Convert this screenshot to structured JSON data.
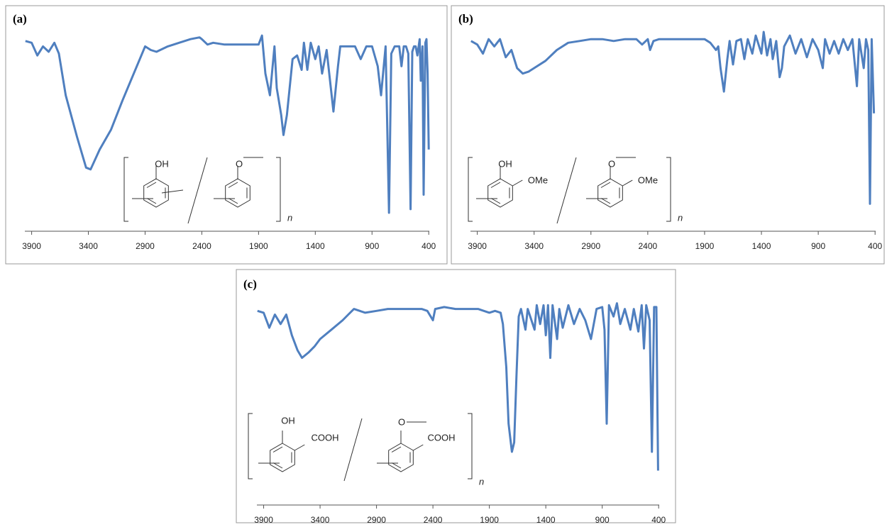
{
  "chart_data": [
    {
      "type": "line",
      "title": "(a)",
      "x": [
        3955,
        3900,
        3850,
        3800,
        3750,
        3700,
        3660,
        3600,
        3500,
        3420,
        3380,
        3300,
        3200,
        3100,
        3000,
        2900,
        2850,
        2800,
        2700,
        2600,
        2500,
        2420,
        2400,
        2350,
        2300,
        2200,
        2100,
        2000,
        1900,
        1870,
        1840,
        1800,
        1760,
        1740,
        1700,
        1680,
        1650,
        1600,
        1560,
        1520,
        1500,
        1470,
        1440,
        1400,
        1370,
        1340,
        1300,
        1270,
        1240,
        1200,
        1180,
        1100,
        1050,
        1000,
        950,
        900,
        850,
        820,
        780,
        750,
        730,
        700,
        660,
        640,
        620,
        600,
        580,
        560,
        545,
        530,
        515,
        500,
        480,
        470,
        455,
        445,
        430,
        420,
        410,
        400
      ],
      "series": [
        {
          "color": "#4f7fbf",
          "values": [
            95,
            94,
            87,
            92,
            89,
            94,
            88,
            65,
            42,
            25,
            24,
            35,
            46,
            62,
            77,
            92,
            90,
            89,
            92,
            94,
            96,
            97,
            96,
            93,
            94,
            93,
            93,
            93,
            93,
            98,
            77,
            65,
            92,
            69,
            54,
            43,
            54,
            85,
            87,
            79,
            94,
            79,
            94,
            85,
            92,
            77,
            90,
            73,
            56,
            81,
            92,
            92,
            92,
            85,
            92,
            92,
            81,
            65,
            92,
            0,
            88,
            92,
            92,
            81,
            92,
            92,
            88,
            2,
            89,
            92,
            92,
            87,
            96,
            73,
            92,
            10,
            94,
            96,
            77,
            35
          ]
        }
      ],
      "xlim": [
        3960,
        395
      ],
      "xticks": [
        3900,
        3400,
        2900,
        2400,
        1900,
        1400,
        900,
        400
      ],
      "ylim": [
        0,
        100
      ],
      "annotations": [
        "OH",
        "O",
        "n"
      ]
    },
    {
      "type": "line",
      "title": "(b)",
      "x": [
        3955,
        3900,
        3850,
        3800,
        3750,
        3700,
        3650,
        3600,
        3550,
        3500,
        3450,
        3400,
        3300,
        3200,
        3100,
        3000,
        2900,
        2800,
        2700,
        2600,
        2500,
        2450,
        2400,
        2380,
        2350,
        2300,
        2100,
        1900,
        1850,
        1800,
        1780,
        1760,
        1730,
        1700,
        1680,
        1650,
        1620,
        1580,
        1550,
        1520,
        1480,
        1450,
        1400,
        1380,
        1350,
        1320,
        1300,
        1270,
        1240,
        1220,
        1200,
        1150,
        1100,
        1050,
        1000,
        950,
        900,
        860,
        840,
        800,
        760,
        720,
        680,
        640,
        600,
        560,
        540,
        500,
        480,
        460,
        445,
        430,
        410
      ],
      "series": [
        {
          "color": "#4f7fbf",
          "values": [
            95,
            93,
            88,
            96,
            92,
            96,
            86,
            90,
            80,
            77,
            78,
            80,
            84,
            90,
            94,
            95,
            96,
            96,
            95,
            96,
            96,
            93,
            96,
            90,
            95,
            96,
            96,
            96,
            94,
            90,
            92,
            80,
            67,
            85,
            95,
            82,
            95,
            96,
            85,
            96,
            88,
            98,
            88,
            100,
            87,
            96,
            85,
            95,
            75,
            80,
            92,
            98,
            88,
            96,
            86,
            96,
            90,
            80,
            96,
            88,
            95,
            88,
            96,
            90,
            96,
            70,
            96,
            80,
            96,
            90,
            5,
            96,
            55
          ]
        }
      ],
      "xlim": [
        3960,
        395
      ],
      "xticks": [
        3900,
        3400,
        2900,
        2400,
        1900,
        1400,
        900,
        400
      ],
      "ylim": [
        0,
        100
      ],
      "annotations": [
        "OH",
        "OMe",
        "O",
        "OMe",
        "n"
      ]
    },
    {
      "type": "line",
      "title": "(c)",
      "x": [
        3955,
        3900,
        3850,
        3800,
        3750,
        3700,
        3650,
        3600,
        3560,
        3500,
        3450,
        3400,
        3300,
        3200,
        3150,
        3100,
        3000,
        2900,
        2800,
        2700,
        2600,
        2500,
        2450,
        2400,
        2380,
        2300,
        2200,
        2100,
        2000,
        1900,
        1850,
        1800,
        1780,
        1750,
        1730,
        1700,
        1680,
        1660,
        1640,
        1620,
        1580,
        1560,
        1500,
        1480,
        1450,
        1420,
        1400,
        1380,
        1360,
        1340,
        1300,
        1280,
        1250,
        1200,
        1150,
        1100,
        1050,
        1000,
        950,
        900,
        880,
        860,
        840,
        800,
        770,
        740,
        700,
        650,
        620,
        580,
        550,
        530,
        510,
        480,
        460,
        440,
        420,
        405
      ],
      "series": [
        {
          "color": "#4f7fbf",
          "values": [
            95,
            94,
            86,
            93,
            88,
            93,
            82,
            74,
            70,
            73,
            76,
            80,
            85,
            90,
            93,
            96,
            94,
            95,
            96,
            96,
            96,
            96,
            95,
            90,
            96,
            97,
            96,
            96,
            96,
            94,
            95,
            94,
            88,
            65,
            35,
            20,
            25,
            60,
            92,
            96,
            85,
            96,
            85,
            98,
            88,
            98,
            82,
            98,
            70,
            98,
            80,
            96,
            86,
            98,
            88,
            96,
            90,
            80,
            96,
            97,
            85,
            35,
            98,
            92,
            99,
            88,
            96,
            85,
            96,
            84,
            98,
            75,
            98,
            90,
            20,
            97,
            97,
            10
          ]
        }
      ],
      "xlim": [
        3960,
        395
      ],
      "xticks": [
        3900,
        3400,
        2900,
        2400,
        1900,
        1400,
        900,
        400
      ],
      "ylim": [
        0,
        100
      ],
      "annotations": [
        "OH",
        "COOH",
        "O",
        "COOH",
        "n"
      ]
    }
  ]
}
